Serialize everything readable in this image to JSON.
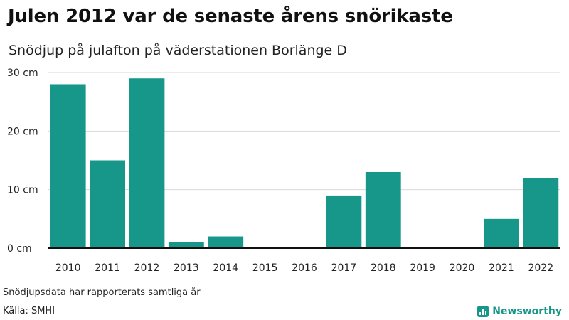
{
  "header": {
    "title": "Julen 2012 var de senaste årens snörikaste",
    "subtitle": "Snödjup på julafton på väderstationen Borlänge D"
  },
  "chart_data": {
    "type": "bar",
    "categories": [
      "2010",
      "2011",
      "2012",
      "2013",
      "2014",
      "2015",
      "2016",
      "2017",
      "2018",
      "2019",
      "2020",
      "2021",
      "2022"
    ],
    "values": [
      28,
      15,
      29,
      1,
      2,
      0,
      0,
      9,
      13,
      0,
      0,
      5,
      12
    ],
    "ylim": [
      0,
      30
    ],
    "yticks": [
      0,
      10,
      20,
      30
    ],
    "ytick_labels": [
      "0 cm",
      "10 cm",
      "20 cm",
      "30 cm"
    ],
    "grid": true,
    "colors": {
      "bar": "#16978a",
      "grid": "#d9d9d9",
      "axis": "#111111"
    }
  },
  "footer": {
    "note": "Snödjupsdata har rapporterats samtliga år",
    "source": "Källa: SMHI",
    "brand": "Newsworthy",
    "brand_icon": "newsworthy-logo-icon",
    "brand_color": "#16978a"
  }
}
